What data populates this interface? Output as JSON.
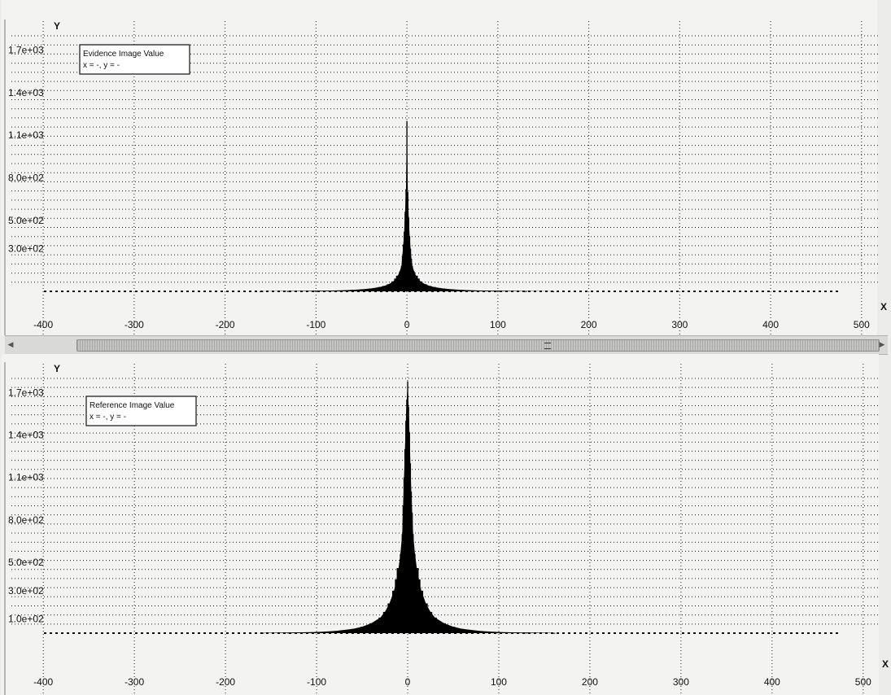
{
  "chart_data": [
    {
      "type": "bar",
      "panel": "top",
      "legend": {
        "title": "Evidence Image Value",
        "readout": "x = -, y = -"
      },
      "xlabel": "X",
      "ylabel": "Y",
      "xlim": [
        -435,
        510
      ],
      "ylim": [
        0,
        1800
      ],
      "x_ticks": [
        -400,
        -300,
        -200,
        -100,
        0,
        100,
        200,
        300,
        400,
        500
      ],
      "y_ticks": [
        300,
        500,
        800,
        1100,
        1400,
        1700
      ],
      "y_tick_labels": [
        "3.0e+02",
        "5.0e+02",
        "8.0e+02",
        "1.1e+03",
        "1.4e+03",
        "1.7e+03"
      ],
      "grid": true,
      "peak": {
        "x": 0,
        "y": 1200
      },
      "x": [
        -6,
        -5,
        -4,
        -3,
        -2,
        -1,
        0,
        1,
        2,
        3,
        4,
        5,
        6,
        8,
        10,
        12,
        15,
        20,
        25,
        30,
        40,
        50,
        60,
        80,
        100,
        130,
        160,
        -8,
        -10,
        -12,
        -15,
        -20,
        -25,
        -30,
        -40,
        -50,
        -60,
        -80,
        -100,
        -130,
        -160
      ],
      "y": [
        180,
        250,
        330,
        420,
        560,
        720,
        1200,
        700,
        520,
        390,
        300,
        230,
        180,
        140,
        110,
        90,
        70,
        50,
        38,
        30,
        20,
        14,
        10,
        6,
        4,
        2,
        1,
        140,
        110,
        90,
        70,
        50,
        38,
        30,
        20,
        14,
        10,
        6,
        4,
        2,
        1
      ]
    },
    {
      "type": "bar",
      "panel": "bottom",
      "legend": {
        "title": "Reference Image Value",
        "readout": "x = -, y = -"
      },
      "xlabel": "X",
      "ylabel": "Y",
      "xlim": [
        -435,
        510
      ],
      "ylim": [
        0,
        1800
      ],
      "x_ticks": [
        -400,
        -300,
        -200,
        -100,
        0,
        100,
        200,
        300,
        400,
        500
      ],
      "y_ticks": [
        100,
        300,
        500,
        800,
        1100,
        1400,
        1700
      ],
      "y_tick_labels": [
        "1.0e+02",
        "3.0e+02",
        "5.0e+02",
        "8.0e+02",
        "1.1e+03",
        "1.4e+03",
        "1.7e+03"
      ],
      "grid": true,
      "peak": {
        "x": 0,
        "y": 1780
      },
      "x": [
        -6,
        -5,
        -4,
        -3,
        -2,
        -1,
        0,
        1,
        2,
        3,
        4,
        5,
        6,
        8,
        10,
        12,
        15,
        20,
        25,
        30,
        40,
        50,
        60,
        80,
        100,
        130,
        160,
        -8,
        -10,
        -12,
        -15,
        -20,
        -25,
        -30,
        -40,
        -50,
        -60,
        -80,
        -100,
        -130,
        -160
      ],
      "y": [
        700,
        900,
        1100,
        1300,
        1500,
        1650,
        1780,
        1600,
        1420,
        1200,
        1000,
        850,
        700,
        560,
        460,
        380,
        300,
        210,
        150,
        110,
        70,
        45,
        30,
        15,
        8,
        4,
        2,
        560,
        460,
        380,
        300,
        210,
        150,
        110,
        70,
        45,
        30,
        15,
        8,
        4,
        2
      ]
    }
  ],
  "splitter": {
    "grip": "="
  }
}
